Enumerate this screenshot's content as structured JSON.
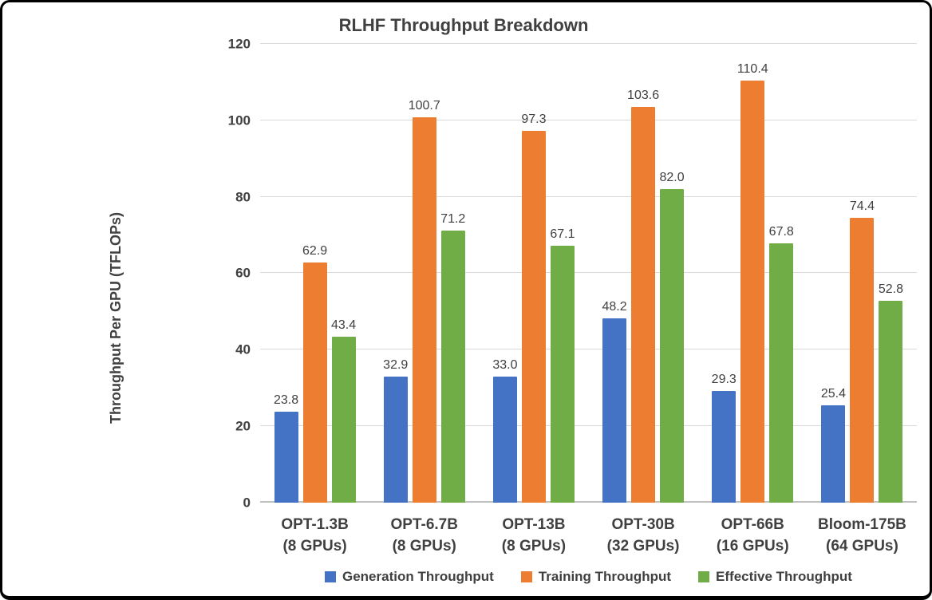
{
  "window": {
    "background": "#FFFFFF",
    "border_color": "#000000"
  },
  "chart_data": {
    "type": "bar",
    "title": "RLHF Throughput Breakdown",
    "xlabel": "",
    "ylabel": "Throughput Per GPU (TFLOPs)",
    "ylim": [
      0,
      120
    ],
    "yticks": [
      0,
      20,
      40,
      60,
      80,
      100,
      120
    ],
    "grid": true,
    "legend_position": "bottom",
    "text_color": "#404040",
    "gridline_color": "#D9D9D9",
    "axis_line_color": "#BFBFBF",
    "categories": [
      "OPT-1.3B",
      "OPT-6.7B",
      "OPT-13B",
      "OPT-30B",
      "OPT-66B",
      "Bloom-175B"
    ],
    "category_sublabels": [
      "(8 GPUs)",
      "(8 GPUs)",
      "(8 GPUs)",
      "(32 GPUs)",
      "(16 GPUs)",
      "(64 GPUs)"
    ],
    "series": [
      {
        "name": "Generation Throughput",
        "color": "#4472C4",
        "values": [
          23.8,
          32.9,
          33.0,
          48.2,
          29.3,
          25.4
        ]
      },
      {
        "name": "Training Throughput",
        "color": "#ED7D31",
        "values": [
          62.9,
          100.7,
          97.3,
          103.6,
          110.4,
          74.4
        ]
      },
      {
        "name": "Effective Throughput",
        "color": "#70AD47",
        "values": [
          43.4,
          71.2,
          67.1,
          82.0,
          67.8,
          52.8
        ]
      }
    ]
  }
}
